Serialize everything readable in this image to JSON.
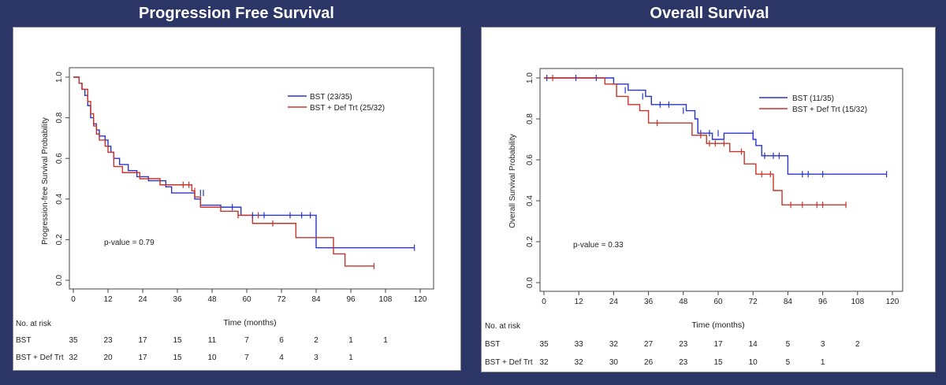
{
  "panels": [
    {
      "id": "pfs",
      "title": "Progression Free Survival",
      "ylabel": "Progression-free Survival Probability",
      "xlabel": "Time (months)",
      "pvalue": "p-value = 0.79",
      "risk_header": "No. at risk"
    },
    {
      "id": "os",
      "title": "Overall Survival",
      "ylabel": "Overall Survival Probability",
      "xlabel": "Time (months)",
      "pvalue": "p-value = 0.33",
      "risk_header": "No. at risk"
    }
  ],
  "chart_data": [
    {
      "type": "line",
      "subtype": "kaplan-meier step curve",
      "title": "Progression Free Survival",
      "xlabel": "Time (months)",
      "ylabel": "Progression-free Survival Probability",
      "xlim": [
        0,
        120
      ],
      "ylim": [
        0,
        1.0
      ],
      "xticks": [
        "0",
        "12",
        "24",
        "36",
        "48",
        "60",
        "72",
        "84",
        "96",
        "108",
        "120"
      ],
      "yticks": [
        "0.0",
        "0.2",
        "0.4",
        "0.6",
        "0.8",
        "1.0"
      ],
      "grid": false,
      "legend_position": "top-right",
      "annotation": "p-value = 0.79",
      "series": [
        {
          "name": "BST (23/35)",
          "color": "#2a35c0",
          "steps": [
            [
              0,
              1.0
            ],
            [
              2,
              0.97
            ],
            [
              3,
              0.94
            ],
            [
              4,
              0.91
            ],
            [
              5,
              0.86
            ],
            [
              6,
              0.8
            ],
            [
              7,
              0.77
            ],
            [
              8,
              0.74
            ],
            [
              9,
              0.71
            ],
            [
              11,
              0.69
            ],
            [
              12,
              0.66
            ],
            [
              13,
              0.63
            ],
            [
              14,
              0.6
            ],
            [
              16,
              0.57
            ],
            [
              19,
              0.54
            ],
            [
              22,
              0.51
            ],
            [
              26,
              0.49
            ],
            [
              32,
              0.46
            ],
            [
              34,
              0.43
            ],
            [
              42,
              0.4
            ],
            [
              44,
              0.37
            ],
            [
              51,
              0.36
            ],
            [
              58,
              0.32
            ],
            [
              84,
              0.16
            ],
            [
              118,
              0.16
            ]
          ],
          "censors": [
            [
              44,
              0.43
            ],
            [
              45,
              0.43
            ],
            [
              55,
              0.36
            ],
            [
              62,
              0.32
            ],
            [
              66,
              0.32
            ],
            [
              75,
              0.32
            ],
            [
              79,
              0.32
            ],
            [
              82,
              0.32
            ],
            [
              118,
              0.16
            ]
          ]
        },
        {
          "name": "BST + Def Trt (25/32)",
          "color": "#c8332a",
          "steps": [
            [
              0,
              1.0
            ],
            [
              2,
              0.97
            ],
            [
              3,
              0.94
            ],
            [
              5,
              0.88
            ],
            [
              6,
              0.82
            ],
            [
              7,
              0.76
            ],
            [
              8,
              0.72
            ],
            [
              9,
              0.69
            ],
            [
              11,
              0.66
            ],
            [
              12,
              0.63
            ],
            [
              14,
              0.56
            ],
            [
              17,
              0.53
            ],
            [
              23,
              0.5
            ],
            [
              30,
              0.47
            ],
            [
              41,
              0.44
            ],
            [
              42,
              0.41
            ],
            [
              44,
              0.36
            ],
            [
              51,
              0.34
            ],
            [
              57,
              0.32
            ],
            [
              62,
              0.28
            ],
            [
              77,
              0.21
            ],
            [
              85,
              0.21
            ],
            [
              90,
              0.13
            ],
            [
              94,
              0.07
            ],
            [
              104,
              0.07
            ]
          ],
          "censors": [
            [
              38,
              0.47
            ],
            [
              40,
              0.47
            ],
            [
              42,
              0.44
            ],
            [
              57,
              0.32
            ],
            [
              64,
              0.32
            ],
            [
              69,
              0.28
            ],
            [
              104,
              0.07
            ]
          ]
        }
      ],
      "at_risk": {
        "times": [
          "0",
          "12",
          "24",
          "36",
          "48",
          "60",
          "72",
          "84",
          "96",
          "108"
        ],
        "rows": [
          {
            "label": "BST",
            "values": [
              "35",
              "23",
              "17",
              "15",
              "11",
              "7",
              "6",
              "2",
              "1",
              "1"
            ]
          },
          {
            "label": "BST + Def Trt",
            "values": [
              "32",
              "20",
              "17",
              "15",
              "10",
              "7",
              "4",
              "3",
              "1",
              ""
            ]
          }
        ]
      }
    },
    {
      "type": "line",
      "subtype": "kaplan-meier step curve",
      "title": "Overall Survival",
      "xlabel": "Time (months)",
      "ylabel": "Overall Survival Probability",
      "xlim": [
        0,
        120
      ],
      "ylim": [
        0,
        1.0
      ],
      "xticks": [
        "0",
        "12",
        "24",
        "36",
        "48",
        "60",
        "72",
        "84",
        "96",
        "108",
        "120"
      ],
      "yticks": [
        "0.0",
        "0.2",
        "0.4",
        "0.6",
        "0.8",
        "1.0"
      ],
      "grid": false,
      "legend_position": "top-right",
      "annotation": "p-value = 0.33",
      "series": [
        {
          "name": "BST (11/35)",
          "color": "#2a35c0",
          "steps": [
            [
              0,
              1.0
            ],
            [
              24,
              0.97
            ],
            [
              29,
              0.94
            ],
            [
              35,
              0.91
            ],
            [
              37,
              0.87
            ],
            [
              49,
              0.84
            ],
            [
              52,
              0.8
            ],
            [
              53,
              0.73
            ],
            [
              58,
              0.7
            ],
            [
              62,
              0.73
            ],
            [
              72,
              0.7
            ],
            [
              73,
              0.67
            ],
            [
              75,
              0.62
            ],
            [
              84,
              0.53
            ],
            [
              118,
              0.53
            ]
          ],
          "censors": [
            [
              1,
              1.0
            ],
            [
              11,
              1.0
            ],
            [
              18,
              1.0
            ],
            [
              28,
              0.94
            ],
            [
              34,
              0.91
            ],
            [
              40,
              0.87
            ],
            [
              43,
              0.87
            ],
            [
              48,
              0.84
            ],
            [
              54,
              0.73
            ],
            [
              57,
              0.73
            ],
            [
              60,
              0.73
            ],
            [
              72,
              0.73
            ],
            [
              76,
              0.62
            ],
            [
              79,
              0.62
            ],
            [
              81,
              0.62
            ],
            [
              89,
              0.53
            ],
            [
              91,
              0.53
            ],
            [
              96,
              0.53
            ],
            [
              118,
              0.53
            ]
          ]
        },
        {
          "name": "BST + Def Trt (15/32)",
          "color": "#c8332a",
          "steps": [
            [
              0,
              1.0
            ],
            [
              18,
              1.0
            ],
            [
              21,
              0.97
            ],
            [
              25,
              0.91
            ],
            [
              29,
              0.87
            ],
            [
              33,
              0.84
            ],
            [
              36,
              0.78
            ],
            [
              51,
              0.72
            ],
            [
              56,
              0.68
            ],
            [
              62,
              0.68
            ],
            [
              64,
              0.64
            ],
            [
              69,
              0.58
            ],
            [
              73,
              0.53
            ],
            [
              79,
              0.45
            ],
            [
              82,
              0.38
            ],
            [
              104,
              0.38
            ]
          ],
          "censors": [
            [
              3,
              1.0
            ],
            [
              39,
              0.78
            ],
            [
              54,
              0.72
            ],
            [
              57,
              0.68
            ],
            [
              59,
              0.68
            ],
            [
              62,
              0.68
            ],
            [
              68,
              0.64
            ],
            [
              75,
              0.53
            ],
            [
              78,
              0.53
            ],
            [
              85,
              0.38
            ],
            [
              89,
              0.38
            ],
            [
              94,
              0.38
            ],
            [
              96,
              0.38
            ],
            [
              104,
              0.38
            ]
          ]
        }
      ],
      "at_risk": {
        "times": [
          "0",
          "12",
          "24",
          "36",
          "48",
          "60",
          "72",
          "84",
          "96",
          "108"
        ],
        "rows": [
          {
            "label": "BST",
            "values": [
              "35",
              "33",
              "32",
              "27",
              "23",
              "17",
              "14",
              "5",
              "3",
              "2"
            ]
          },
          {
            "label": "BST + Def Trt",
            "values": [
              "32",
              "32",
              "30",
              "26",
              "23",
              "15",
              "10",
              "5",
              "1",
              ""
            ]
          }
        ]
      }
    }
  ]
}
